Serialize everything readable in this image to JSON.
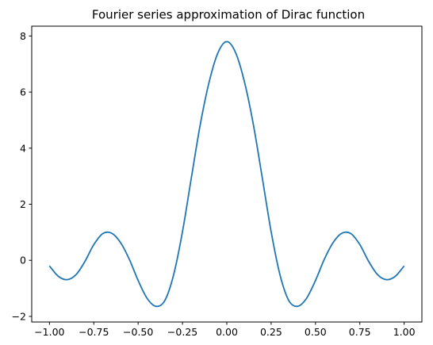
{
  "chart_data": {
    "type": "line",
    "title": "Fourier series approximation of Dirac function",
    "xlabel": "",
    "ylabel": "",
    "xlim": [
      -1.1,
      1.1
    ],
    "ylim": [
      -2.2,
      8.35
    ],
    "xticks": [
      -1.0,
      -0.75,
      -0.5,
      -0.25,
      0.0,
      0.25,
      0.5,
      0.75,
      1.0
    ],
    "xtick_labels": [
      "−1.00",
      "−0.75",
      "−0.50",
      "−0.25",
      "0.00",
      "0.25",
      "0.50",
      "0.75",
      "1.00"
    ],
    "yticks": [
      -2,
      0,
      2,
      4,
      6,
      8
    ],
    "ytick_labels": [
      "−2",
      "0",
      "2",
      "4",
      "6",
      "8"
    ],
    "grid": false,
    "series": [
      {
        "color": "#1f77b4",
        "x": [
          -1.0,
          -0.95,
          -0.9,
          -0.85,
          -0.8,
          -0.75,
          -0.7,
          -0.65,
          -0.6,
          -0.55,
          -0.5,
          -0.45,
          -0.4,
          -0.35,
          -0.3,
          -0.25,
          -0.2,
          -0.15,
          -0.1,
          -0.05,
          0.0,
          0.05,
          0.1,
          0.15,
          0.2,
          0.25,
          0.3,
          0.35,
          0.4,
          0.45,
          0.5,
          0.55,
          0.6,
          0.65,
          0.7,
          0.75,
          0.8,
          0.85,
          0.9,
          0.95,
          1.0
        ],
        "y": [
          -0.2,
          -0.57,
          -0.69,
          -0.51,
          -0.04,
          0.56,
          0.95,
          0.97,
          0.64,
          0.04,
          -0.72,
          -1.35,
          -1.64,
          -1.44,
          -0.52,
          1.02,
          2.94,
          4.83,
          6.35,
          7.4,
          7.8,
          7.4,
          6.35,
          4.83,
          2.94,
          1.02,
          -0.52,
          -1.44,
          -1.64,
          -1.35,
          -0.72,
          0.04,
          0.64,
          0.97,
          0.95,
          0.56,
          -0.04,
          -0.51,
          -0.69,
          -0.57,
          -0.2
        ]
      }
    ]
  }
}
